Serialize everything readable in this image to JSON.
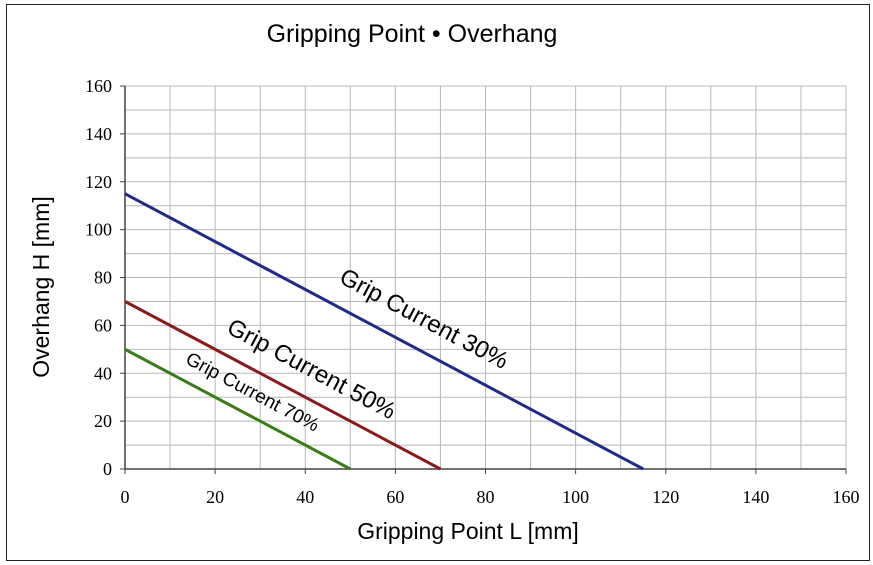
{
  "chart_data": {
    "type": "line",
    "title": "Gripping Point • Overhang",
    "xlabel": "Gripping Point L [mm]",
    "ylabel": "Overhang H [mm]",
    "xlim": [
      0,
      160
    ],
    "ylim": [
      0,
      160
    ],
    "x_ticks": [
      "0",
      "20",
      "40",
      "60",
      "80",
      "100",
      "120",
      "140",
      "160"
    ],
    "y_ticks": [
      "0",
      "20",
      "40",
      "60",
      "80",
      "100",
      "120",
      "140",
      "160"
    ],
    "grid": true,
    "series": [
      {
        "name": "Grip Current 30%",
        "color": "#1f2a8a",
        "points": [
          [
            0,
            115
          ],
          [
            115,
            0
          ]
        ]
      },
      {
        "name": "Grip Current 50%",
        "color": "#8b1a1a",
        "points": [
          [
            0,
            70
          ],
          [
            70,
            0
          ]
        ]
      },
      {
        "name": "Grip Current 70%",
        "color": "#3a7d1a",
        "points": [
          [
            0,
            50
          ],
          [
            50,
            0
          ]
        ]
      }
    ]
  }
}
